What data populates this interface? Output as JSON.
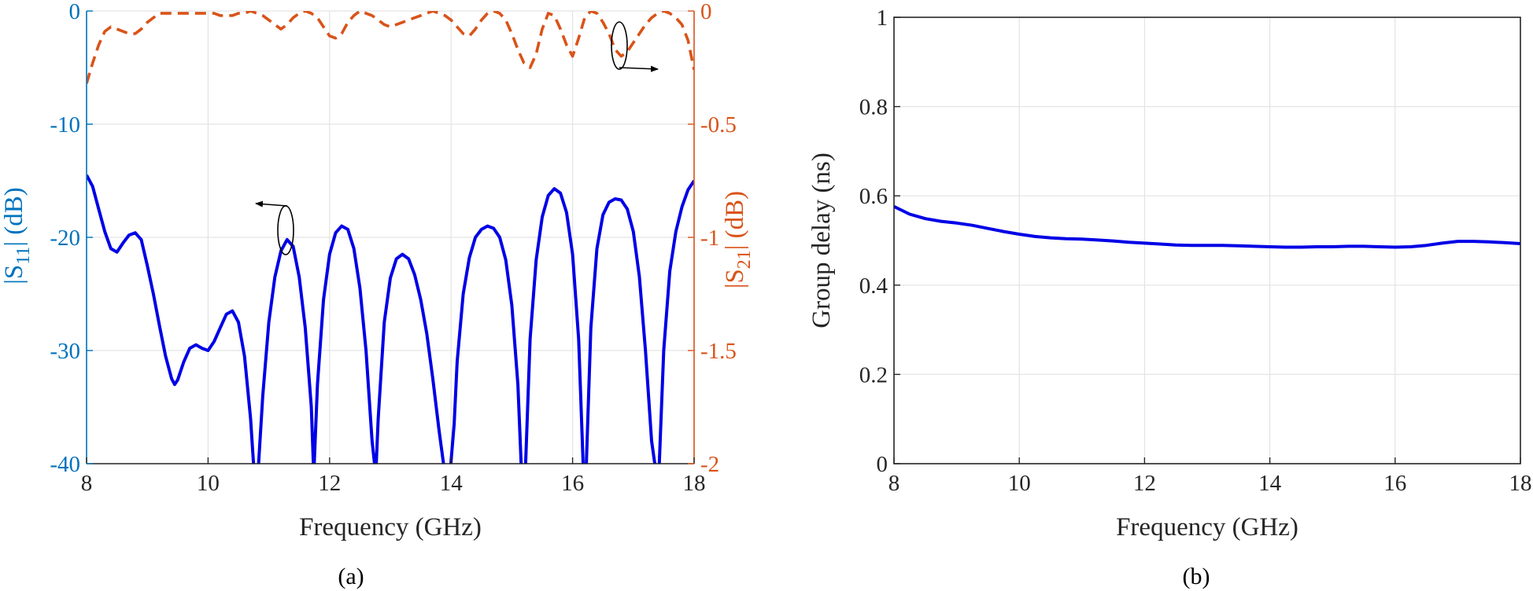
{
  "colors": {
    "s11": "#0000e6",
    "s21": "#d95319",
    "left_axis": "#0072bd",
    "right_axis": "#d95319",
    "grid": "#e3e3e3",
    "axis": "#262626",
    "annotation": "#000000"
  },
  "chart_data": [
    {
      "type": "line",
      "caption": "(a)",
      "xlabel": "Frequency (GHz)",
      "xlim": [
        8,
        18
      ],
      "xticks": [
        8,
        10,
        12,
        14,
        16,
        18
      ],
      "grid": true,
      "legend": "none",
      "y_left": {
        "label_main": "|S",
        "label_sub": "11",
        "label_tail": "| (dB)",
        "lim": [
          -40,
          0
        ],
        "ticks": [
          0,
          -10,
          -20,
          -30,
          -40
        ],
        "tick_labels": [
          "0",
          "-10",
          "-20",
          "-30",
          "-40"
        ]
      },
      "y_right": {
        "label_main": "|S",
        "label_sub": "21",
        "label_tail": "| (dB)",
        "lim": [
          -2,
          0
        ],
        "ticks": [
          0,
          -0.5,
          -1,
          -1.5,
          -2
        ],
        "tick_labels": [
          "0",
          "-0.5",
          "-1",
          "-1.5",
          "-2"
        ]
      },
      "series": [
        {
          "axis": "left",
          "style": "solid",
          "x": [
            8.0,
            8.1,
            8.2,
            8.3,
            8.4,
            8.5,
            8.6,
            8.7,
            8.8,
            8.9,
            9.0,
            9.1,
            9.2,
            9.3,
            9.4,
            9.45,
            9.5,
            9.6,
            9.7,
            9.8,
            9.9,
            10.0,
            10.1,
            10.2,
            10.3,
            10.4,
            10.5,
            10.6,
            10.7,
            10.76,
            10.82,
            10.9,
            11.0,
            11.1,
            11.2,
            11.3,
            11.4,
            11.5,
            11.6,
            11.7,
            11.74,
            11.8,
            11.9,
            12.0,
            12.1,
            12.2,
            12.3,
            12.4,
            12.5,
            12.6,
            12.7,
            12.76,
            12.8,
            12.9,
            13.0,
            13.1,
            13.2,
            13.3,
            13.4,
            13.5,
            13.6,
            13.7,
            13.8,
            13.9,
            13.98,
            14.05,
            14.1,
            14.2,
            14.3,
            14.4,
            14.5,
            14.6,
            14.7,
            14.8,
            14.9,
            15.0,
            15.1,
            15.16,
            15.22,
            15.3,
            15.4,
            15.5,
            15.6,
            15.7,
            15.8,
            15.9,
            16.0,
            16.1,
            16.18,
            16.22,
            16.3,
            16.4,
            16.5,
            16.6,
            16.7,
            16.8,
            16.9,
            17.0,
            17.1,
            17.2,
            17.3,
            17.38,
            17.42,
            17.5,
            17.6,
            17.7,
            17.8,
            17.9,
            18.0
          ],
          "y": [
            -14.5,
            -15.5,
            -17.5,
            -19.5,
            -21.0,
            -21.3,
            -20.5,
            -19.8,
            -19.6,
            -20.2,
            -22.5,
            -25.0,
            -27.8,
            -30.5,
            -32.5,
            -33.0,
            -32.6,
            -31.0,
            -29.8,
            -29.5,
            -29.8,
            -30.0,
            -29.2,
            -28.0,
            -26.8,
            -26.5,
            -27.5,
            -30.5,
            -36.0,
            -41.0,
            -41.0,
            -34.0,
            -27.5,
            -23.5,
            -21.2,
            -20.2,
            -20.8,
            -23.5,
            -28.0,
            -35.0,
            -41.0,
            -33.0,
            -25.5,
            -21.5,
            -19.6,
            -19.0,
            -19.3,
            -21.0,
            -24.5,
            -30.0,
            -38.0,
            -41.0,
            -36.0,
            -27.5,
            -23.6,
            -21.9,
            -21.5,
            -21.9,
            -23.3,
            -25.5,
            -28.5,
            -32.5,
            -37.0,
            -41.0,
            -41.0,
            -36.5,
            -31.0,
            -25.0,
            -21.8,
            -20.0,
            -19.3,
            -19.0,
            -19.2,
            -20.0,
            -22.0,
            -26.0,
            -33.0,
            -41.0,
            -41.0,
            -29.0,
            -22.0,
            -18.2,
            -16.3,
            -15.7,
            -16.1,
            -17.8,
            -21.5,
            -29.0,
            -41.0,
            -41.0,
            -28.0,
            -21.0,
            -18.0,
            -16.9,
            -16.6,
            -16.7,
            -17.5,
            -19.5,
            -23.5,
            -30.0,
            -38.0,
            -41.0,
            -41.0,
            -30.0,
            -23.0,
            -19.5,
            -17.3,
            -15.8,
            -15.0
          ]
        },
        {
          "axis": "right",
          "style": "dashed",
          "x": [
            8.0,
            8.1,
            8.2,
            8.3,
            8.4,
            8.5,
            8.6,
            8.7,
            8.8,
            8.9,
            9.0,
            9.1,
            9.2,
            9.3,
            9.4,
            9.5,
            9.6,
            9.7,
            9.8,
            9.9,
            10.0,
            10.1,
            10.2,
            10.3,
            10.4,
            10.5,
            10.6,
            10.7,
            10.8,
            10.9,
            11.0,
            11.1,
            11.2,
            11.3,
            11.4,
            11.5,
            11.6,
            11.7,
            11.8,
            11.9,
            12.0,
            12.1,
            12.2,
            12.3,
            12.4,
            12.5,
            12.6,
            12.7,
            12.8,
            12.9,
            13.0,
            13.1,
            13.2,
            13.3,
            13.4,
            13.5,
            13.6,
            13.7,
            13.8,
            13.9,
            14.0,
            14.1,
            14.2,
            14.3,
            14.4,
            14.5,
            14.6,
            14.7,
            14.8,
            14.9,
            15.0,
            15.1,
            15.2,
            15.3,
            15.4,
            15.5,
            15.6,
            15.7,
            15.8,
            15.9,
            16.0,
            16.1,
            16.2,
            16.3,
            16.4,
            16.5,
            16.6,
            16.7,
            16.8,
            16.9,
            17.0,
            17.1,
            17.2,
            17.3,
            17.4,
            17.5,
            17.6,
            17.7,
            17.8,
            17.9,
            18.0
          ],
          "y": [
            -0.32,
            -0.23,
            -0.15,
            -0.09,
            -0.07,
            -0.08,
            -0.09,
            -0.1,
            -0.1,
            -0.08,
            -0.05,
            -0.03,
            -0.01,
            -0.01,
            -0.01,
            -0.01,
            -0.01,
            -0.01,
            -0.01,
            -0.01,
            -0.01,
            -0.01,
            -0.02,
            -0.02,
            -0.02,
            -0.01,
            -0.01,
            -0.0,
            -0.01,
            -0.02,
            -0.04,
            -0.06,
            -0.08,
            -0.06,
            -0.03,
            -0.01,
            -0.0,
            -0.01,
            -0.03,
            -0.07,
            -0.11,
            -0.12,
            -0.1,
            -0.05,
            -0.02,
            -0.0,
            -0.01,
            -0.02,
            -0.04,
            -0.06,
            -0.07,
            -0.06,
            -0.05,
            -0.04,
            -0.03,
            -0.02,
            -0.01,
            -0.0,
            -0.01,
            -0.02,
            -0.04,
            -0.07,
            -0.1,
            -0.11,
            -0.08,
            -0.04,
            -0.01,
            -0.0,
            -0.01,
            -0.04,
            -0.1,
            -0.17,
            -0.23,
            -0.25,
            -0.19,
            -0.08,
            -0.01,
            -0.02,
            -0.08,
            -0.15,
            -0.2,
            -0.12,
            -0.03,
            -0.0,
            -0.01,
            -0.05,
            -0.1,
            -0.17,
            -0.2,
            -0.18,
            -0.14,
            -0.1,
            -0.06,
            -0.03,
            -0.01,
            -0.0,
            -0.01,
            -0.03,
            -0.06,
            -0.13,
            -0.26
          ]
        }
      ]
    },
    {
      "type": "line",
      "caption": "(b)",
      "xlabel": "Frequency (GHz)",
      "ylabel": "Group delay (ns)",
      "xlim": [
        8,
        18
      ],
      "ylim": [
        0,
        1
      ],
      "xticks": [
        8,
        10,
        12,
        14,
        16,
        18
      ],
      "yticks": [
        0,
        0.2,
        0.4,
        0.6,
        0.8,
        1
      ],
      "ytick_labels": [
        "0",
        "0.2",
        "0.4",
        "0.6",
        "0.8",
        "1"
      ],
      "grid": true,
      "legend": "none",
      "series": [
        {
          "x": [
            8.0,
            8.25,
            8.5,
            8.75,
            9.0,
            9.25,
            9.5,
            9.75,
            10.0,
            10.25,
            10.5,
            10.75,
            11.0,
            11.25,
            11.5,
            11.75,
            12.0,
            12.25,
            12.5,
            12.75,
            13.0,
            13.25,
            13.5,
            13.75,
            14.0,
            14.25,
            14.5,
            14.75,
            15.0,
            15.25,
            15.5,
            15.75,
            16.0,
            16.25,
            16.5,
            16.75,
            17.0,
            17.25,
            17.5,
            17.75,
            18.0
          ],
          "y": [
            0.576,
            0.559,
            0.549,
            0.543,
            0.539,
            0.534,
            0.527,
            0.52,
            0.514,
            0.509,
            0.506,
            0.504,
            0.503,
            0.501,
            0.499,
            0.496,
            0.494,
            0.492,
            0.49,
            0.489,
            0.489,
            0.489,
            0.488,
            0.487,
            0.486,
            0.485,
            0.485,
            0.486,
            0.486,
            0.487,
            0.487,
            0.486,
            0.485,
            0.486,
            0.489,
            0.494,
            0.498,
            0.498,
            0.497,
            0.495,
            0.493
          ]
        }
      ]
    }
  ]
}
